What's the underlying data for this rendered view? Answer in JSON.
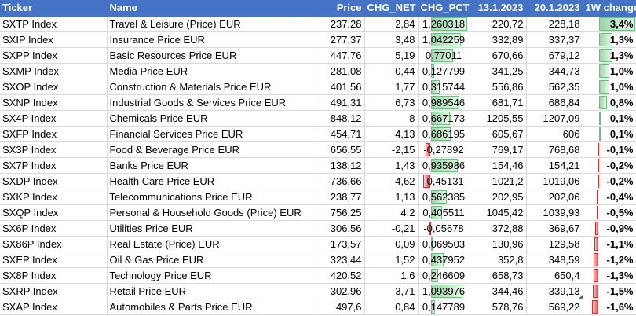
{
  "headers": [
    "Ticker",
    "Name",
    "Price",
    "CHG_NET",
    "CHG_PCT",
    "13.1.2023",
    "20.1.2023",
    "1W change"
  ],
  "rows": [
    {
      "ticker": "SXTP Index",
      "name": "Travel & Leisure (Price) EUR",
      "price": "237,28",
      "chg_net": "2,84",
      "chg_pct": "1,260318",
      "d1": "220,72",
      "d2": "228,18",
      "w1": "3,4%",
      "pct": 1.260318,
      "w": 3.4
    },
    {
      "ticker": "SXIP Index",
      "name": "Insurance Price EUR",
      "price": "277,37",
      "chg_net": "3,48",
      "chg_pct": "1,042259",
      "d1": "332,89",
      "d2": "337,37",
      "w1": "1,3%",
      "pct": 1.042259,
      "w": 1.3
    },
    {
      "ticker": "SXPP Index",
      "name": "Basic Resources Price EUR",
      "price": "447,76",
      "chg_net": "5,19",
      "chg_pct": "0,77011",
      "d1": "670,66",
      "d2": "679,12",
      "w1": "1,3%",
      "pct": 0.77011,
      "w": 1.3
    },
    {
      "ticker": "SXMP Index",
      "name": "Media Price EUR",
      "price": "281,08",
      "chg_net": "0,44",
      "chg_pct": "0,127799",
      "d1": "341,25",
      "d2": "344,73",
      "w1": "1,0%",
      "pct": 0.127799,
      "w": 1.0
    },
    {
      "ticker": "SXOP Index",
      "name": "Construction & Materials Price EUR",
      "price": "401,56",
      "chg_net": "1,77",
      "chg_pct": "0,315744",
      "d1": "556,86",
      "d2": "562,35",
      "w1": "1,0%",
      "pct": 0.315744,
      "w": 1.0
    },
    {
      "ticker": "SXNP Index",
      "name": "Industrial Goods & Services Price EUR",
      "price": "491,31",
      "chg_net": "6,73",
      "chg_pct": "0,989546",
      "d1": "681,71",
      "d2": "686,84",
      "w1": "0,8%",
      "pct": 0.989546,
      "w": 0.8
    },
    {
      "ticker": "SX4P Index",
      "name": "Chemicals Price EUR",
      "price": "848,12",
      "chg_net": "8",
      "chg_pct": "0,667173",
      "d1": "1205,55",
      "d2": "1207,09",
      "w1": "0,1%",
      "pct": 0.667173,
      "w": 0.1
    },
    {
      "ticker": "SXFP Index",
      "name": "Financial Services Price EUR",
      "price": "454,71",
      "chg_net": "4,13",
      "chg_pct": "0,686195",
      "d1": "605,67",
      "d2": "606",
      "w1": "0,1%",
      "pct": 0.686195,
      "w": 0.1
    },
    {
      "ticker": "SX3P Index",
      "name": "Food & Beverage Price EUR",
      "price": "656,55",
      "chg_net": "-2,15",
      "chg_pct": "-0,27892",
      "d1": "769,17",
      "d2": "768,68",
      "w1": "-0,1%",
      "pct": -0.27892,
      "w": -0.1
    },
    {
      "ticker": "SX7P Index",
      "name": "Banks Price EUR",
      "price": "138,12",
      "chg_net": "1,43",
      "chg_pct": "0,935986",
      "d1": "154,46",
      "d2": "154,21",
      "w1": "-0,2%",
      "pct": 0.935986,
      "w": -0.2
    },
    {
      "ticker": "SXDP Index",
      "name": "Health Care Price EUR",
      "price": "736,66",
      "chg_net": "-4,62",
      "chg_pct": "-0,45131",
      "d1": "1021,2",
      "d2": "1019,06",
      "w1": "-0,2%",
      "pct": -0.45131,
      "w": -0.2
    },
    {
      "ticker": "SXKP Index",
      "name": "Telecommunications Price EUR",
      "price": "238,77",
      "chg_net": "1,13",
      "chg_pct": "0,562385",
      "d1": "202,95",
      "d2": "202,06",
      "w1": "-0,4%",
      "pct": 0.562385,
      "w": -0.4
    },
    {
      "ticker": "SXQP Index",
      "name": "Personal & Household Goods (Price) EUR",
      "price": "756,25",
      "chg_net": "4,2",
      "chg_pct": "0,405511",
      "d1": "1045,42",
      "d2": "1039,93",
      "w1": "-0,5%",
      "pct": 0.405511,
      "w": -0.5
    },
    {
      "ticker": "SX6P Index",
      "name": "Utilities Price EUR",
      "price": "306,56",
      "chg_net": "-0,21",
      "chg_pct": "-0,05678",
      "d1": "372,88",
      "d2": "369,67",
      "w1": "-0,9%",
      "pct": -0.05678,
      "w": -0.9
    },
    {
      "ticker": "SX86P Index",
      "name": "Real Estate (Price) EUR",
      "price": "173,57",
      "chg_net": "0,09",
      "chg_pct": "0,069503",
      "d1": "130,96",
      "d2": "129,58",
      "w1": "-1,1%",
      "pct": 0.069503,
      "w": -1.1
    },
    {
      "ticker": "SXEP Index",
      "name": "Oil & Gas Price EUR",
      "price": "323,44",
      "chg_net": "1,52",
      "chg_pct": "0,437952",
      "d1": "352,8",
      "d2": "348,59",
      "w1": "-1,2%",
      "pct": 0.437952,
      "w": -1.2
    },
    {
      "ticker": "SX8P Index",
      "name": "Technology Price EUR",
      "price": "420,52",
      "chg_net": "1,6",
      "chg_pct": "0,246609",
      "d1": "658,73",
      "d2": "650,4",
      "w1": "-1,3%",
      "pct": 0.246609,
      "w": -1.3
    },
    {
      "ticker": "SXRP Index",
      "name": "Retail Price EUR",
      "price": "302,96",
      "chg_net": "3,71",
      "chg_pct": "1,093976",
      "d1": "344,46",
      "d2": "339,13",
      "w1": "-1,5%",
      "pct": 1.093976,
      "w": -1.5
    },
    {
      "ticker": "SXAP Index",
      "name": "Automobiles & Parts Price EUR",
      "price": "497,6",
      "chg_net": "0,84",
      "chg_pct": "0,147789",
      "d1": "578,76",
      "d2": "569,22",
      "w1": "-1,6%",
      "pct": 0.147789,
      "w": -1.6
    }
  ],
  "colors": {
    "header_bg": "#4472c4",
    "pos_bar": "#9bd5a6",
    "neg_bar": "#e84b4b"
  }
}
